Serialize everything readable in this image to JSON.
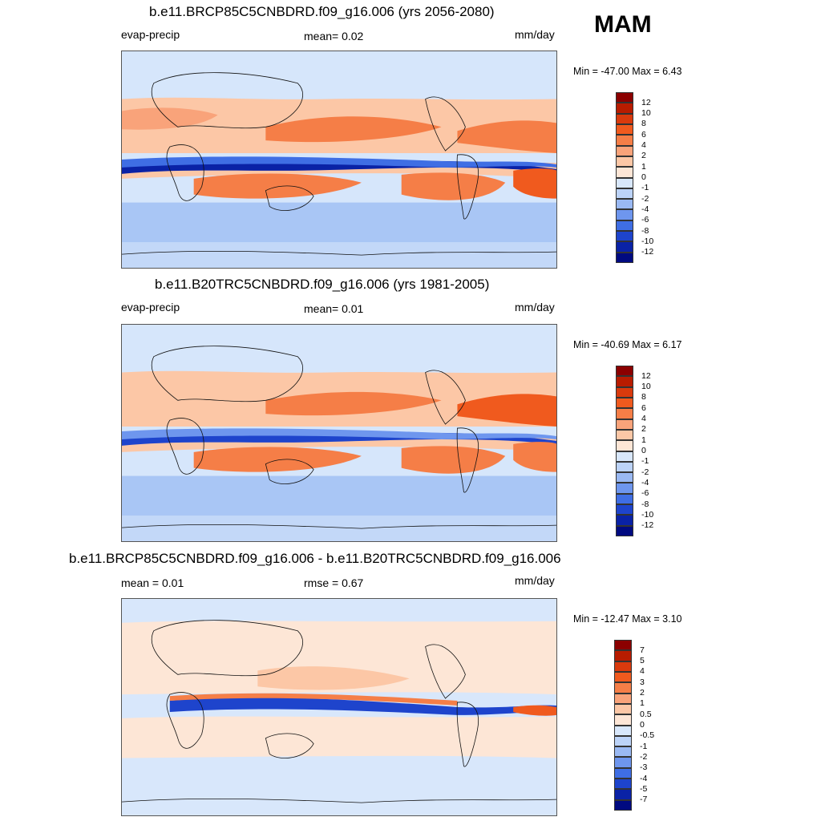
{
  "season": "MAM",
  "units": "mm/day",
  "panels": [
    {
      "title": "b.e11.BRCP85C5CNBDRD.f09_g16.006 (yrs 2056-2080)",
      "left_label": "evap-precip",
      "center_label": "mean=   0.02",
      "right_label": "mm/day",
      "minmax": "Min = -47.00 Max =    6.43"
    },
    {
      "title": "b.e11.B20TRC5CNBDRD.f09_g16.006 (yrs 1981-2005)",
      "left_label": "evap-precip",
      "center_label": "mean=   0.01",
      "right_label": "mm/day",
      "minmax": "Min = -40.69 Max =    6.17"
    },
    {
      "title": "b.e11.BRCP85C5CNBDRD.f09_g16.006 - b.e11.B20TRC5CNBDRD.f09_g16.006",
      "left_label": "mean =   0.01",
      "center_label": "rmse =   0.67",
      "right_label": "mm/day",
      "minmax": "Min = -12.47 Max =    3.10"
    }
  ],
  "colorbars": {
    "abs": {
      "labels": [
        "12",
        "10",
        "8",
        "6",
        "4",
        "2",
        "1",
        "0",
        "-1",
        "-2",
        "-4",
        "-6",
        "-8",
        "-10",
        "-12"
      ],
      "colors": [
        "#8b0000",
        "#b81c00",
        "#d93a0d",
        "#f05a1e",
        "#f57e47",
        "#f9a37a",
        "#fcc7a6",
        "#fde6d6",
        "#d8e7fb",
        "#bcd3f8",
        "#9ab9f3",
        "#6e96ee",
        "#3f6ee4",
        "#1e44cc",
        "#0a22a6",
        "#000a80"
      ]
    },
    "diff": {
      "labels": [
        "7",
        "5",
        "4",
        "3",
        "2",
        "1",
        "0.5",
        "0",
        "-0.5",
        "-1",
        "-2",
        "-3",
        "-4",
        "-5",
        "-7"
      ],
      "colors": [
        "#8b0000",
        "#b81c00",
        "#d93a0d",
        "#f05a1e",
        "#f57e47",
        "#f9a37a",
        "#fcc7a6",
        "#fde6d6",
        "#d8e7fb",
        "#bcd3f8",
        "#9ab9f3",
        "#6e96ee",
        "#3f6ee4",
        "#1e44cc",
        "#0a22a6",
        "#000a80"
      ]
    }
  }
}
